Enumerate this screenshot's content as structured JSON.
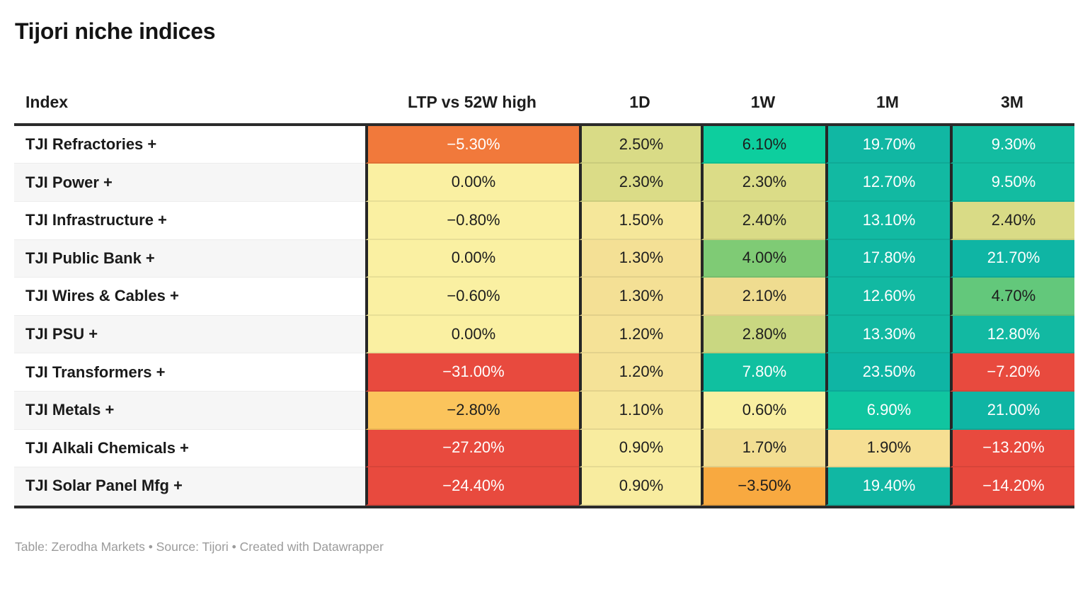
{
  "title": "Tijori niche indices",
  "footer": "Table: Zerodha Markets • Source: Tijori • Created with Datawrapper",
  "colors": {
    "border_dark": "#2B2B2B",
    "column_divider": "#262626",
    "row_stripe": "#F6F6F6",
    "header_text": "#1D1D1D",
    "footer_text": "#9B9B9B",
    "negative_red": "#E84A3E",
    "neutral_yellow": "#FAF0A2",
    "positive_teal": "#12B9A2"
  },
  "table": {
    "columns": [
      {
        "label": "Index"
      },
      {
        "label": "LTP vs 52W high"
      },
      {
        "label": "1D"
      },
      {
        "label": "1W"
      },
      {
        "label": "1M"
      },
      {
        "label": "3M"
      }
    ],
    "rows": [
      {
        "index": "TJI Refractories +",
        "cells": [
          {
            "value": "−5.30%",
            "bg": "#F1793B",
            "fg": "#FFFFFF"
          },
          {
            "value": "2.50%",
            "bg": "#D9DB86",
            "fg": "#1D1D1D"
          },
          {
            "value": "6.10%",
            "bg": "#0DCE9E",
            "fg": "#1D1D1D"
          },
          {
            "value": "19.70%",
            "bg": "#11B7A3",
            "fg": "#FFFFFF"
          },
          {
            "value": "9.30%",
            "bg": "#13BCA1",
            "fg": "#FFFFFF"
          }
        ]
      },
      {
        "index": "TJI Power +",
        "cells": [
          {
            "value": "0.00%",
            "bg": "#FAF0A2",
            "fg": "#1D1D1D"
          },
          {
            "value": "2.30%",
            "bg": "#DBDC87",
            "fg": "#1D1D1D"
          },
          {
            "value": "2.30%",
            "bg": "#DBDC87",
            "fg": "#1D1D1D"
          },
          {
            "value": "12.70%",
            "bg": "#12B9A2",
            "fg": "#FFFFFF"
          },
          {
            "value": "9.50%",
            "bg": "#13BCA1",
            "fg": "#FFFFFF"
          }
        ]
      },
      {
        "index": "TJI Infrastructure +",
        "cells": [
          {
            "value": "−0.80%",
            "bg": "#FAF0A2",
            "fg": "#1D1D1D"
          },
          {
            "value": "1.50%",
            "bg": "#F5E79A",
            "fg": "#1D1D1D"
          },
          {
            "value": "2.40%",
            "bg": "#D9DB86",
            "fg": "#1D1D1D"
          },
          {
            "value": "13.10%",
            "bg": "#12B9A2",
            "fg": "#FFFFFF"
          },
          {
            "value": "2.40%",
            "bg": "#D9DB86",
            "fg": "#1D1D1D"
          }
        ]
      },
      {
        "index": "TJI Public Bank +",
        "cells": [
          {
            "value": "0.00%",
            "bg": "#FAF0A2",
            "fg": "#1D1D1D"
          },
          {
            "value": "1.30%",
            "bg": "#F4E095",
            "fg": "#1D1D1D"
          },
          {
            "value": "4.00%",
            "bg": "#7FCB75",
            "fg": "#1D1D1D"
          },
          {
            "value": "17.80%",
            "bg": "#11B7A3",
            "fg": "#FFFFFF"
          },
          {
            "value": "21.70%",
            "bg": "#0FB5A4",
            "fg": "#FFFFFF"
          }
        ]
      },
      {
        "index": "TJI Wires & Cables +",
        "cells": [
          {
            "value": "−0.60%",
            "bg": "#FAF0A2",
            "fg": "#1D1D1D"
          },
          {
            "value": "1.30%",
            "bg": "#F4E095",
            "fg": "#1D1D1D"
          },
          {
            "value": "2.10%",
            "bg": "#EFDC90",
            "fg": "#1D1D1D"
          },
          {
            "value": "12.60%",
            "bg": "#12B9A2",
            "fg": "#FFFFFF"
          },
          {
            "value": "4.70%",
            "bg": "#63C87B",
            "fg": "#1D1D1D"
          }
        ]
      },
      {
        "index": "TJI PSU +",
        "cells": [
          {
            "value": "0.00%",
            "bg": "#FAF0A2",
            "fg": "#1D1D1D"
          },
          {
            "value": "1.20%",
            "bg": "#F5E297",
            "fg": "#1D1D1D"
          },
          {
            "value": "2.80%",
            "bg": "#C9D781",
            "fg": "#1D1D1D"
          },
          {
            "value": "13.30%",
            "bg": "#12B9A2",
            "fg": "#FFFFFF"
          },
          {
            "value": "12.80%",
            "bg": "#12B9A2",
            "fg": "#FFFFFF"
          }
        ]
      },
      {
        "index": "TJI Transformers +",
        "cells": [
          {
            "value": "−31.00%",
            "bg": "#E84A3E",
            "fg": "#FFFFFF"
          },
          {
            "value": "1.20%",
            "bg": "#F5E297",
            "fg": "#1D1D1D"
          },
          {
            "value": "7.80%",
            "bg": "#10C0A0",
            "fg": "#FFFFFF"
          },
          {
            "value": "23.50%",
            "bg": "#0FB5A4",
            "fg": "#FFFFFF"
          },
          {
            "value": "−7.20%",
            "bg": "#E84A3E",
            "fg": "#FFFFFF"
          }
        ]
      },
      {
        "index": "TJI Metals +",
        "cells": [
          {
            "value": "−2.80%",
            "bg": "#FBC45C",
            "fg": "#1D1D1D"
          },
          {
            "value": "1.10%",
            "bg": "#F6E69A",
            "fg": "#1D1D1D"
          },
          {
            "value": "0.60%",
            "bg": "#F9EFA1",
            "fg": "#1D1D1D"
          },
          {
            "value": "6.90%",
            "bg": "#10C5A0",
            "fg": "#FFFFFF"
          },
          {
            "value": "21.00%",
            "bg": "#0FB5A4",
            "fg": "#FFFFFF"
          }
        ]
      },
      {
        "index": "TJI Alkali Chemicals +",
        "cells": [
          {
            "value": "−27.20%",
            "bg": "#E84A3E",
            "fg": "#FFFFFF"
          },
          {
            "value": "0.90%",
            "bg": "#F8EC9F",
            "fg": "#1D1D1D"
          },
          {
            "value": "1.70%",
            "bg": "#F2DE92",
            "fg": "#1D1D1D"
          },
          {
            "value": "1.90%",
            "bg": "#F6DF93",
            "fg": "#1D1D1D"
          },
          {
            "value": "−13.20%",
            "bg": "#E84A3E",
            "fg": "#FFFFFF"
          }
        ]
      },
      {
        "index": "TJI Solar Panel Mfg +",
        "cells": [
          {
            "value": "−24.40%",
            "bg": "#E84A3E",
            "fg": "#FFFFFF"
          },
          {
            "value": "0.90%",
            "bg": "#F8EC9F",
            "fg": "#1D1D1D"
          },
          {
            "value": "−3.50%",
            "bg": "#F8A940",
            "fg": "#1D1D1D"
          },
          {
            "value": "19.40%",
            "bg": "#11B7A3",
            "fg": "#FFFFFF"
          },
          {
            "value": "−14.20%",
            "bg": "#E84A3E",
            "fg": "#FFFFFF"
          }
        ]
      }
    ]
  },
  "chart_data": {
    "type": "table",
    "title": "Tijori niche indices",
    "rows": [
      "TJI Refractories +",
      "TJI Power +",
      "TJI Infrastructure +",
      "TJI Public Bank +",
      "TJI Wires & Cables +",
      "TJI PSU +",
      "TJI Transformers +",
      "TJI Metals +",
      "TJI Alkali Chemicals +",
      "TJI Solar Panel Mfg +"
    ],
    "columns": [
      "LTP vs 52W high",
      "1D",
      "1W",
      "1M",
      "3M"
    ],
    "series": [
      {
        "name": "LTP vs 52W high",
        "values": [
          -5.3,
          0.0,
          -0.8,
          0.0,
          -0.6,
          0.0,
          -31.0,
          -2.8,
          -27.2,
          -24.4
        ]
      },
      {
        "name": "1D",
        "values": [
          2.5,
          2.3,
          1.5,
          1.3,
          1.3,
          1.2,
          1.2,
          1.1,
          0.9,
          0.9
        ]
      },
      {
        "name": "1W",
        "values": [
          6.1,
          2.3,
          2.4,
          4.0,
          2.1,
          2.8,
          7.8,
          0.6,
          1.7,
          -3.5
        ]
      },
      {
        "name": "1M",
        "values": [
          19.7,
          12.7,
          13.1,
          17.8,
          12.6,
          13.3,
          23.5,
          6.9,
          1.9,
          19.4
        ]
      },
      {
        "name": "3M",
        "values": [
          9.3,
          9.5,
          2.4,
          21.7,
          4.7,
          12.8,
          -7.2,
          21.0,
          -13.2,
          -14.2
        ]
      }
    ],
    "units": "%",
    "color_scale": "red (negative) → yellow (≈0) → olive/green (low positive) → teal (high positive)",
    "footer": "Table: Zerodha Markets • Source: Tijori • Created with Datawrapper"
  }
}
